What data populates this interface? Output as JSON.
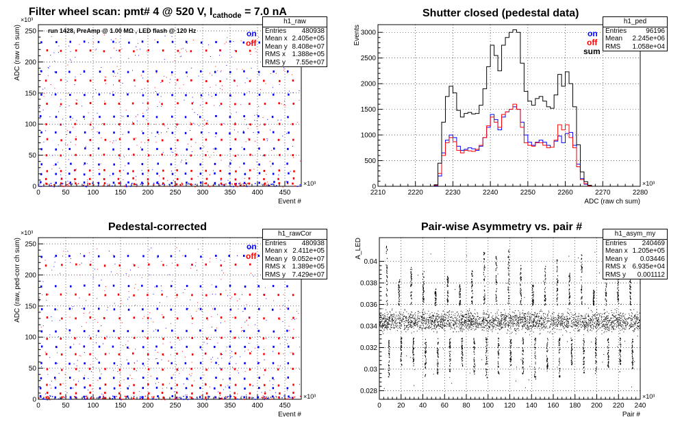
{
  "page": {
    "main_title": "Filter wheel scan: pmt#   4 @   520 V, I",
    "main_title_sub": "cathode",
    "main_title_end": " = 7.0 nA"
  },
  "colors": {
    "on": "#0000ff",
    "off": "#ff0000",
    "sum": "#000000"
  },
  "chart_data": [
    {
      "id": "raw",
      "type": "scatter",
      "title": "",
      "xlabel": "Event #",
      "ylabel": "ADC (raw ch sum)",
      "xexp": "×10³",
      "yexp": "×10³",
      "xlim": [
        0,
        480
      ],
      "ylim": [
        0,
        260
      ],
      "xticks": [
        0,
        50,
        100,
        150,
        200,
        250,
        300,
        350,
        400,
        450
      ],
      "yticks": [
        0,
        50,
        100,
        150,
        200,
        250
      ],
      "grid": true,
      "note": "run 1428, PreAmp @ 1.00 MΩ , LED flash @  120 Hz",
      "legend": [
        "on",
        "off"
      ],
      "levels_on": [
        232,
        184,
        147,
        112,
        86,
        60,
        36,
        20,
        6
      ],
      "levels_off": [
        218,
        170,
        133,
        100,
        75,
        50,
        25,
        12,
        4
      ],
      "stats": {
        "name": "h1_raw",
        "rows": [
          [
            "Entries",
            "480938"
          ],
          [
            "Mean x",
            "2.405e+05"
          ],
          [
            "Mean y",
            "8.408e+07"
          ],
          [
            "RMS x",
            "1.388e+05"
          ],
          [
            "RMS y",
            "7.55e+07"
          ]
        ]
      }
    },
    {
      "id": "ped",
      "type": "line",
      "title": "Shutter closed (pedestal data)",
      "xlabel": "ADC (raw ch sum)",
      "ylabel": "Events",
      "xexp": "×10³",
      "xlim": [
        2210,
        2280
      ],
      "ylim": [
        0,
        3150
      ],
      "xticks": [
        2210,
        2220,
        2230,
        2240,
        2250,
        2260,
        2270,
        2280
      ],
      "yticks": [
        0,
        500,
        1000,
        1500,
        2000,
        2500,
        3000
      ],
      "grid": true,
      "legend": [
        "on",
        "off",
        "sum"
      ],
      "x": [
        2225,
        2226,
        2227,
        2228,
        2229,
        2230,
        2231,
        2232,
        2233,
        2234,
        2235,
        2236,
        2237,
        2238,
        2239,
        2240,
        2241,
        2242,
        2243,
        2244,
        2245,
        2246,
        2247,
        2248,
        2249,
        2250,
        2251,
        2252,
        2253,
        2254,
        2255,
        2256,
        2257,
        2258,
        2259,
        2260,
        2261,
        2262,
        2263,
        2264,
        2265,
        2266
      ],
      "series": [
        {
          "name": "on",
          "values": [
            10,
            200,
            650,
            900,
            1000,
            950,
            780,
            700,
            720,
            750,
            730,
            700,
            780,
            950,
            1150,
            1400,
            1300,
            1100,
            1350,
            1450,
            1500,
            1550,
            1500,
            1250,
            1000,
            860,
            800,
            860,
            900,
            860,
            800,
            760,
            880,
            980,
            850,
            1030,
            1050,
            800,
            430,
            150,
            40,
            10
          ]
        },
        {
          "name": "off",
          "values": [
            20,
            250,
            600,
            850,
            950,
            870,
            700,
            650,
            700,
            690,
            680,
            720,
            800,
            950,
            1180,
            1350,
            1250,
            1150,
            1400,
            1450,
            1500,
            1600,
            1500,
            1150,
            850,
            800,
            780,
            850,
            850,
            800,
            750,
            760,
            900,
            1200,
            1100,
            1200,
            950,
            750,
            380,
            130,
            50,
            10
          ]
        },
        {
          "name": "sum",
          "values": [
            30,
            450,
            1250,
            1750,
            1950,
            1820,
            1480,
            1350,
            1420,
            1440,
            1410,
            1420,
            1580,
            1900,
            2330,
            2750,
            2550,
            2250,
            2750,
            2900,
            3000,
            3050,
            3000,
            2400,
            1850,
            1660,
            1580,
            1710,
            1750,
            1660,
            1550,
            1520,
            1780,
            2180,
            1950,
            2230,
            2000,
            1550,
            810,
            280,
            90,
            20
          ]
        }
      ],
      "stats": {
        "name": "h1_ped",
        "rows": [
          [
            "Entries",
            "96196"
          ],
          [
            "Mean",
            "2.245e+06"
          ],
          [
            "RMS",
            "1.058e+04"
          ]
        ]
      }
    },
    {
      "id": "rawCor",
      "type": "scatter",
      "title": "Pedestal-corrected",
      "xlabel": "Event #",
      "ylabel": "ADC (raw, ped-corr ch sum)",
      "xexp": "×10³",
      "yexp": "×10³",
      "xlim": [
        0,
        480
      ],
      "ylim": [
        0,
        260
      ],
      "xticks": [
        0,
        50,
        100,
        150,
        200,
        250,
        300,
        350,
        400,
        450
      ],
      "yticks": [
        0,
        50,
        100,
        150,
        200,
        250
      ],
      "grid": true,
      "legend": [
        "on",
        "off"
      ],
      "levels_on": [
        230,
        182,
        145,
        110,
        84,
        58,
        34,
        18,
        4
      ],
      "levels_off": [
        216,
        168,
        131,
        98,
        73,
        48,
        23,
        10,
        2
      ],
      "stats": {
        "name": "h1_rawCor",
        "rows": [
          [
            "Entries",
            "480938"
          ],
          [
            "Mean x",
            "2.411e+05"
          ],
          [
            "Mean y",
            "9.052e+07"
          ],
          [
            "RMS x",
            "1.389e+05"
          ],
          [
            "RMS y",
            "7.429e+07"
          ]
        ]
      }
    },
    {
      "id": "asym",
      "type": "scatter",
      "title": "Pair-wise Asymmetry vs. pair #",
      "xlabel": "Pair #",
      "ylabel": "A_LED",
      "xexp": "×10³",
      "xlim": [
        0,
        240
      ],
      "ylim": [
        0.0272,
        0.0422
      ],
      "xticks": [
        0,
        20,
        40,
        60,
        80,
        100,
        120,
        140,
        160,
        180,
        200,
        220,
        240
      ],
      "yticks": [
        0.028,
        0.03,
        0.032,
        0.034,
        0.036,
        0.038,
        0.04
      ],
      "grid": true,
      "center": 0.03446,
      "stats": {
        "name": "h1_asym_my",
        "rows": [
          [
            "Entries",
            "240469"
          ],
          [
            "Mean x",
            "1.205e+05"
          ],
          [
            "Mean y",
            "0.03446"
          ],
          [
            "RMS x",
            "6.935e+04"
          ],
          [
            "RMS y",
            "0.001112"
          ]
        ]
      }
    }
  ]
}
